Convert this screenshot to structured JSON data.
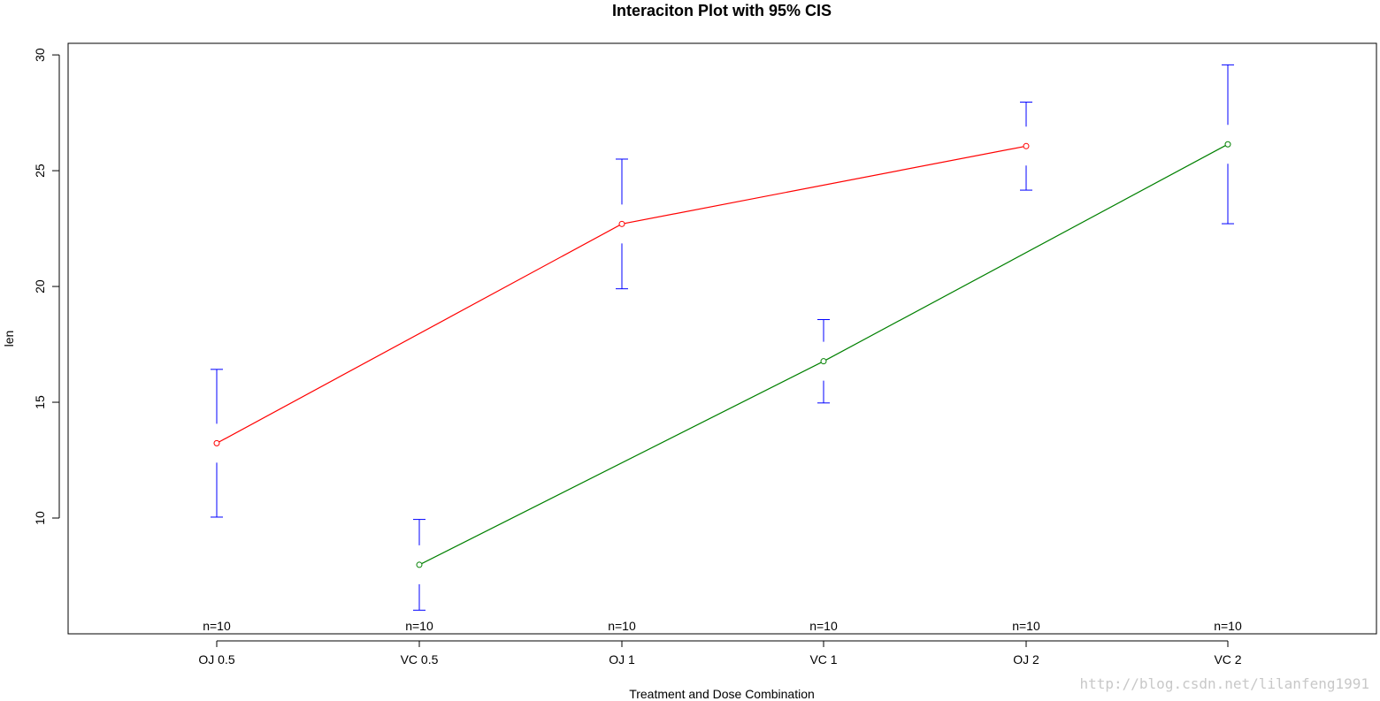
{
  "chart_data": {
    "type": "line",
    "title": "Interaciton Plot with 95% CIS",
    "xlabel": "Treatment and Dose Combination",
    "ylabel": "len",
    "categories": [
      "OJ 0.5",
      "VC 0.5",
      "OJ 1",
      "VC 1",
      "OJ 2",
      "VC 2"
    ],
    "ylim": [
      5.0,
      30.5
    ],
    "yticks": [
      10,
      15,
      20,
      25,
      30
    ],
    "grid": false,
    "legend": "none",
    "series": [
      {
        "color": "#ff0000",
        "points": [
          {
            "category": "OJ 0.5",
            "mean": 13.23,
            "lower": 10.04,
            "upper": 16.42
          },
          {
            "category": "OJ 1",
            "mean": 22.7,
            "lower": 19.9,
            "upper": 25.5
          },
          {
            "category": "OJ 2",
            "mean": 26.06,
            "lower": 24.16,
            "upper": 27.96
          }
        ]
      },
      {
        "color": "#008000",
        "points": [
          {
            "category": "VC 0.5",
            "mean": 7.98,
            "lower": 6.02,
            "upper": 9.94
          },
          {
            "category": "VC 1",
            "mean": 16.77,
            "lower": 14.97,
            "upper": 18.57
          },
          {
            "category": "VC 2",
            "mean": 26.14,
            "lower": 22.71,
            "upper": 29.57
          }
        ]
      }
    ],
    "error_bar_color": "#0000ff",
    "n_labels": [
      "n=10",
      "n=10",
      "n=10",
      "n=10",
      "n=10",
      "n=10"
    ]
  },
  "watermark": "http://blog.csdn.net/lilanfeng1991"
}
